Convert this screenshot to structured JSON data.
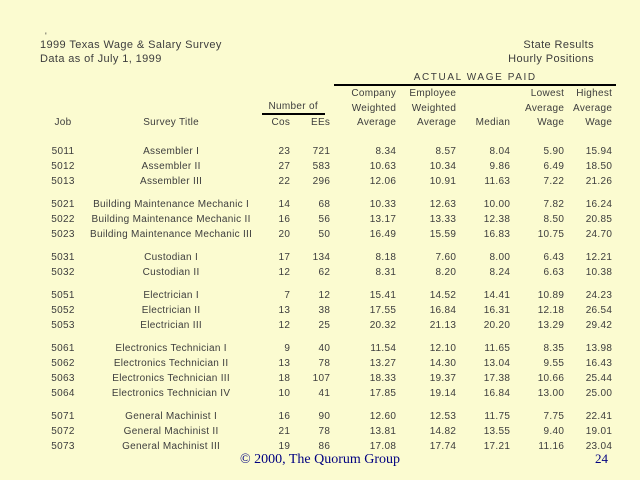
{
  "header": {
    "stray_mark": "'",
    "title": "1999 Texas Wage & Salary Survey",
    "subtitle": "Data as of July 1, 1999",
    "right_title": "State Results",
    "right_subtitle": "Hourly Positions"
  },
  "table": {
    "span_header": "ACTUAL WAGE PAID",
    "number_of_label": "Number of",
    "col_headers": {
      "company": "Company",
      "employee": "Employee",
      "lowest": "Lowest",
      "highest": "Highest",
      "weighted_company": "Weighted",
      "weighted_employee": "Weighted",
      "average_lowest": "Average",
      "average_highest": "Average",
      "job": "Job",
      "survey_title": "Survey Title",
      "cos": "Cos",
      "ees": "EEs",
      "average_company": "Average",
      "average_employee": "Average",
      "median": "Median",
      "wage_lowest": "Wage",
      "wage_highest": "Wage"
    },
    "groups": [
      {
        "rows": [
          [
            "5011",
            "Assembler I",
            "23",
            "721",
            "8.34",
            "8.57",
            "8.04",
            "5.90",
            "15.94"
          ],
          [
            "5012",
            "Assembler II",
            "27",
            "583",
            "10.63",
            "10.34",
            "9.86",
            "6.49",
            "18.50"
          ],
          [
            "5013",
            "Assembler III",
            "22",
            "296",
            "12.06",
            "10.91",
            "11.63",
            "7.22",
            "21.26"
          ]
        ]
      },
      {
        "rows": [
          [
            "5021",
            "Building Maintenance Mechanic I",
            "14",
            "68",
            "10.33",
            "12.63",
            "10.00",
            "7.82",
            "16.24"
          ],
          [
            "5022",
            "Building Maintenance Mechanic II",
            "16",
            "56",
            "13.17",
            "13.33",
            "12.38",
            "8.50",
            "20.85"
          ],
          [
            "5023",
            "Building Maintenance Mechanic III",
            "20",
            "50",
            "16.49",
            "15.59",
            "16.83",
            "10.75",
            "24.70"
          ]
        ]
      },
      {
        "rows": [
          [
            "5031",
            "Custodian I",
            "17",
            "134",
            "8.18",
            "7.60",
            "8.00",
            "6.43",
            "12.21"
          ],
          [
            "5032",
            "Custodian II",
            "12",
            "62",
            "8.31",
            "8.20",
            "8.24",
            "6.63",
            "10.38"
          ]
        ]
      },
      {
        "rows": [
          [
            "5051",
            "Electrician I",
            "7",
            "12",
            "15.41",
            "14.52",
            "14.41",
            "10.89",
            "24.23"
          ],
          [
            "5052",
            "Electrician II",
            "13",
            "38",
            "17.55",
            "16.84",
            "16.31",
            "12.18",
            "26.54"
          ],
          [
            "5053",
            "Electrician III",
            "12",
            "25",
            "20.32",
            "21.13",
            "20.20",
            "13.29",
            "29.42"
          ]
        ]
      },
      {
        "rows": [
          [
            "5061",
            "Electronics Technician I",
            "9",
            "40",
            "11.54",
            "12.10",
            "11.65",
            "8.35",
            "13.98"
          ],
          [
            "5062",
            "Electronics Technician II",
            "13",
            "78",
            "13.27",
            "14.30",
            "13.04",
            "9.55",
            "16.43"
          ],
          [
            "5063",
            "Electronics Technician III",
            "18",
            "107",
            "18.33",
            "19.37",
            "17.38",
            "10.66",
            "25.44"
          ],
          [
            "5064",
            "Electronics Technician IV",
            "10",
            "41",
            "17.85",
            "19.14",
            "16.84",
            "13.00",
            "25.00"
          ]
        ]
      },
      {
        "rows": [
          [
            "5071",
            "General Machinist I",
            "16",
            "90",
            "12.60",
            "12.53",
            "11.75",
            "7.75",
            "22.41"
          ],
          [
            "5072",
            "General Machinist II",
            "21",
            "78",
            "13.81",
            "14.82",
            "13.55",
            "9.40",
            "19.01"
          ],
          [
            "5073",
            "General Machinist III",
            "19",
            "86",
            "17.08",
            "17.74",
            "17.21",
            "11.16",
            "23.04"
          ]
        ]
      }
    ]
  },
  "footer": {
    "copyright": "© 2000, The Quorum Group",
    "page_number": "24"
  },
  "colors": {
    "background": "#FBFBD0",
    "text": "#3d3d3d",
    "rule": "#000000",
    "footer_text": "#000080"
  }
}
